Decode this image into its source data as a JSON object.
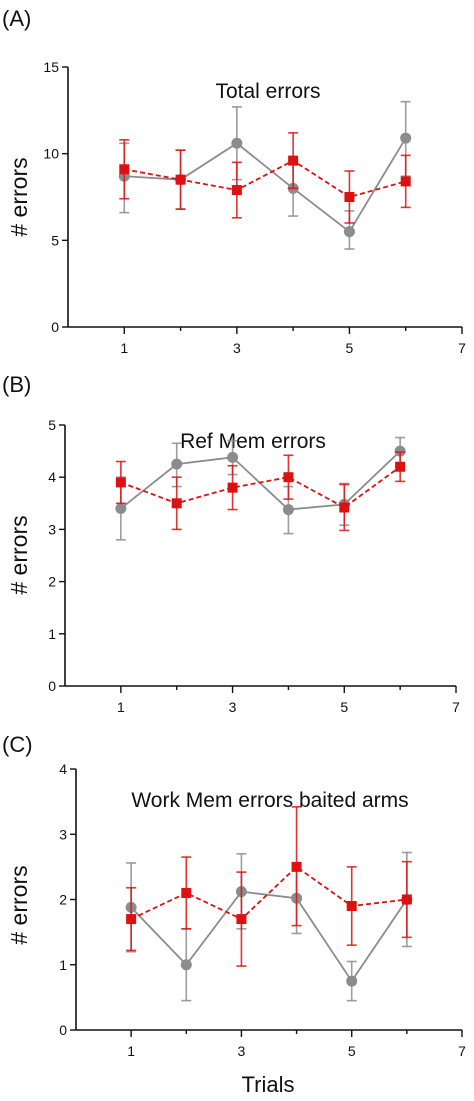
{
  "colors": {
    "grey": "#8c8c8c",
    "red": "#dd1111",
    "axis": "#111111"
  },
  "xlabel": "Trials",
  "chart_data": [
    {
      "type": "line",
      "panel_label": "(A)",
      "title": "Total errors",
      "ylabel": "# errors",
      "xlim": [
        0,
        7
      ],
      "ylim": [
        0,
        15
      ],
      "xticks": [
        1,
        3,
        5,
        7
      ],
      "yticks": [
        0,
        5,
        10,
        15
      ],
      "x": [
        1,
        2,
        3,
        4,
        5,
        6
      ],
      "series": [
        {
          "color": "#8c8c8c",
          "marker": "circle",
          "dash": false,
          "values": [
            8.7,
            8.5,
            10.6,
            8.0,
            5.5,
            10.9
          ],
          "err_low": [
            6.6,
            6.8,
            8.5,
            6.4,
            4.5,
            8.7
          ],
          "err_high": [
            10.6,
            10.2,
            12.7,
            9.6,
            6.7,
            13.0
          ]
        },
        {
          "color": "#dd1111",
          "marker": "square",
          "dash": true,
          "values": [
            9.1,
            8.5,
            7.9,
            9.6,
            7.5,
            8.4
          ],
          "err_low": [
            7.4,
            6.8,
            6.3,
            8.0,
            6.0,
            6.9
          ],
          "err_high": [
            10.8,
            10.2,
            9.5,
            11.2,
            9.0,
            9.9
          ]
        }
      ]
    },
    {
      "type": "line",
      "panel_label": "(B)",
      "title": "Ref Mem errors",
      "ylabel": "# errors",
      "xlim": [
        0,
        7
      ],
      "ylim": [
        0,
        5
      ],
      "xticks": [
        1,
        3,
        5,
        7
      ],
      "yticks": [
        0,
        1,
        2,
        3,
        4,
        5
      ],
      "x": [
        1,
        2,
        3,
        4,
        5,
        6
      ],
      "series": [
        {
          "color": "#8c8c8c",
          "marker": "circle",
          "dash": false,
          "values": [
            3.4,
            4.25,
            4.38,
            3.38,
            3.48,
            4.5
          ],
          "err_low": [
            2.8,
            3.82,
            4.05,
            2.92,
            3.08,
            4.22
          ],
          "err_high": [
            4.0,
            4.65,
            4.7,
            3.82,
            3.88,
            4.76
          ]
        },
        {
          "color": "#dd1111",
          "marker": "square",
          "dash": true,
          "values": [
            3.9,
            3.5,
            3.8,
            4.0,
            3.42,
            4.2
          ],
          "err_low": [
            3.5,
            3.0,
            3.38,
            3.58,
            2.98,
            3.92
          ],
          "err_high": [
            4.3,
            4.0,
            4.22,
            4.42,
            3.86,
            4.48
          ]
        }
      ]
    },
    {
      "type": "line",
      "panel_label": "(C)",
      "title": "Work Mem errors  baited arms",
      "ylabel": "# errors",
      "xlim": [
        0,
        7
      ],
      "ylim": [
        0,
        4
      ],
      "xticks": [
        1,
        3,
        5,
        7
      ],
      "yticks": [
        0,
        1,
        2,
        3,
        4
      ],
      "x": [
        1,
        2,
        3,
        4,
        5,
        6
      ],
      "series": [
        {
          "color": "#8c8c8c",
          "marker": "circle",
          "dash": false,
          "values": [
            1.88,
            1.0,
            2.12,
            2.02,
            0.75,
            2.0
          ],
          "err_low": [
            1.2,
            0.45,
            1.55,
            1.48,
            0.45,
            1.28
          ],
          "err_high": [
            2.56,
            1.55,
            2.7,
            2.56,
            1.05,
            2.72
          ]
        },
        {
          "color": "#dd1111",
          "marker": "square",
          "dash": true,
          "values": [
            1.7,
            2.1,
            1.7,
            2.5,
            1.9,
            2.0
          ],
          "err_low": [
            1.22,
            1.55,
            0.98,
            1.6,
            1.3,
            1.42
          ],
          "err_high": [
            2.18,
            2.65,
            2.42,
            3.42,
            2.5,
            2.58
          ]
        }
      ]
    }
  ]
}
